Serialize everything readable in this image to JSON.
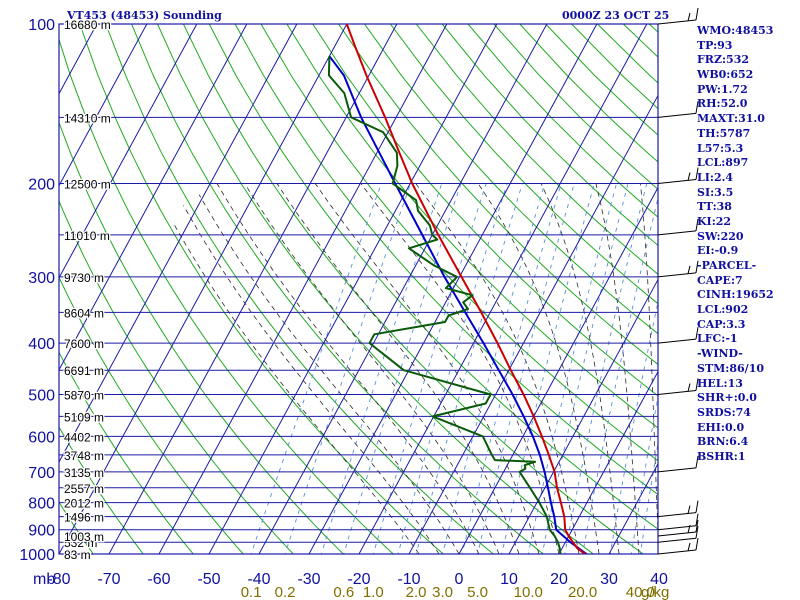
{
  "header": {
    "station_title": "VT453 (48453) Sounding",
    "time_label": "0000Z 23 OCT 25"
  },
  "indices": [
    "WMO:48453",
    "TP:93",
    "FRZ:532",
    "WB0:652",
    "PW:1.72",
    "RH:52.0",
    "MAXT:31.0",
    "TH:5787",
    "L57:5.3",
    "LCL:897",
    "LI:2.4",
    "SI:3.5",
    "TT:38",
    "KI:22",
    "SW:220",
    "EI:-0.9",
    "-PARCEL-",
    "CAPE:7",
    "CINH:19652",
    "LCL:902",
    "CAP:3.3",
    "LFC:-1",
    "-WIND-",
    "STM:86/10",
    "HEL:13",
    "SHR+:0.0",
    "SRDS:74",
    "EHI:0.0",
    "BRN:6.4",
    "BSHR:1"
  ],
  "colors": {
    "axis_text": "#1010a0",
    "isobars": "#1a1aa8",
    "isotherms": "#1a1aa8",
    "dry_adiabats": "#22aa22",
    "moist_adiabats": "#2a2a2a",
    "mixing_ratio": "#5a8fd6",
    "temperature": "#cc0000",
    "dewpoint": "#0a5a0a",
    "parcel": "#0000cc",
    "wind_barbs": "#000000",
    "mixing_labels": "#807000"
  },
  "chart_data": {
    "type": "line",
    "title": "",
    "xlabel": "",
    "ylabel": "mb",
    "y_scale": "log",
    "ylim": [
      1000,
      100
    ],
    "xlim": [
      -80,
      40
    ],
    "pressure_ticks": [
      1000,
      900,
      800,
      700,
      600,
      500,
      400,
      300,
      200,
      100
    ],
    "temperature_ticks": [
      -80,
      -70,
      -60,
      -50,
      -40,
      -30,
      -20,
      -10,
      0,
      10,
      20,
      30,
      40
    ],
    "height_labels": [
      {
        "p": 1000,
        "label": "83 m"
      },
      {
        "p": 950,
        "label": "532 m"
      },
      {
        "p": 925,
        "label": "1003 m"
      },
      {
        "p": 850,
        "label": "1496 m"
      },
      {
        "p": 800,
        "label": "2012 m"
      },
      {
        "p": 750,
        "label": "2557 m"
      },
      {
        "p": 700,
        "label": "3135 m"
      },
      {
        "p": 650,
        "label": "3748 m"
      },
      {
        "p": 600,
        "label": "4402 m"
      },
      {
        "p": 550,
        "label": "5109 m"
      },
      {
        "p": 500,
        "label": "5870 m"
      },
      {
        "p": 450,
        "label": "6691 m"
      },
      {
        "p": 400,
        "label": "7600 m"
      },
      {
        "p": 350,
        "label": "8604 m"
      },
      {
        "p": 300,
        "label": "9730 m"
      },
      {
        "p": 250,
        "label": "11010 m"
      },
      {
        "p": 200,
        "label": "12500 m"
      },
      {
        "p": 150,
        "label": "14310 m"
      },
      {
        "p": 100,
        "label": "16680 m"
      }
    ],
    "mixing_ratio_labels": [
      {
        "value": 0.1,
        "label": "0.1"
      },
      {
        "value": 0.2,
        "label": "0.2"
      },
      {
        "value": 0.6,
        "label": "0.6"
      },
      {
        "value": 1.0,
        "label": "1.0"
      },
      {
        "value": 2.0,
        "label": "2.0"
      },
      {
        "value": 3.0,
        "label": "3.0"
      },
      {
        "value": 5.0,
        "label": "5.0"
      },
      {
        "value": 10.0,
        "label": "10.0"
      },
      {
        "value": 20.0,
        "label": "20.0"
      },
      {
        "value": 40.0,
        "label": "40.0"
      }
    ],
    "mixing_ratio_unit": "g/kg",
    "series": [
      {
        "key": "temperature",
        "points": [
          [
            1000,
            25.2
          ],
          [
            975,
            23.0
          ],
          [
            950,
            21.5
          ],
          [
            925,
            20.0
          ],
          [
            900,
            18.6
          ],
          [
            850,
            17.0
          ],
          [
            800,
            14.8
          ],
          [
            750,
            12.4
          ],
          [
            700,
            10.2
          ],
          [
            650,
            7.2
          ],
          [
            600,
            3.8
          ],
          [
            550,
            0.0
          ],
          [
            500,
            -4.4
          ],
          [
            450,
            -9.6
          ],
          [
            400,
            -15.2
          ],
          [
            350,
            -21.8
          ],
          [
            300,
            -29.6
          ],
          [
            250,
            -38.8
          ],
          [
            200,
            -49.6
          ],
          [
            175,
            -55.5
          ],
          [
            150,
            -62.2
          ],
          [
            125,
            -70.5
          ],
          [
            110,
            -76.0
          ],
          [
            100,
            -80.0
          ]
        ]
      },
      {
        "key": "dewpoint",
        "points": [
          [
            1000,
            20.3
          ],
          [
            975,
            19.5
          ],
          [
            950,
            18.5
          ],
          [
            925,
            17.2
          ],
          [
            900,
            15.5
          ],
          [
            850,
            13.5
          ],
          [
            800,
            10.5
          ],
          [
            750,
            7.0
          ],
          [
            700,
            3.2
          ],
          [
            690,
            4.0
          ],
          [
            680,
            3.5
          ],
          [
            670,
            5.2
          ],
          [
            665,
            -3.0
          ],
          [
            650,
            -4.2
          ],
          [
            600,
            -8.0
          ],
          [
            550,
            -20.2
          ],
          [
            520,
            -11.0
          ],
          [
            500,
            -11.0
          ],
          [
            450,
            -31.0
          ],
          [
            400,
            -40.8
          ],
          [
            385,
            -40.8
          ],
          [
            365,
            -28.0
          ],
          [
            355,
            -28.0
          ],
          [
            345,
            -24.8
          ],
          [
            335,
            -26.5
          ],
          [
            325,
            -25.4
          ],
          [
            315,
            -31.5
          ],
          [
            300,
            -30.5
          ],
          [
            285,
            -36.5
          ],
          [
            265,
            -43.2
          ],
          [
            255,
            -38.5
          ],
          [
            250,
            -40.0
          ],
          [
            240,
            -41.5
          ],
          [
            225,
            -45.5
          ],
          [
            215,
            -47.0
          ],
          [
            200,
            -53.5
          ],
          [
            185,
            -54.5
          ],
          [
            175,
            -56.0
          ],
          [
            160,
            -61.0
          ],
          [
            150,
            -69.0
          ],
          [
            135,
            -73.0
          ],
          [
            125,
            -78.0
          ],
          [
            115,
            -80.0
          ]
        ]
      },
      {
        "key": "parcel",
        "points": [
          [
            1000,
            25.5
          ],
          [
            950,
            21.0
          ],
          [
            900,
            16.8
          ],
          [
            850,
            15.0
          ],
          [
            800,
            12.8
          ],
          [
            750,
            10.6
          ],
          [
            700,
            8.2
          ],
          [
            650,
            5.4
          ],
          [
            600,
            2.0
          ],
          [
            550,
            -2.0
          ],
          [
            500,
            -6.6
          ],
          [
            450,
            -12.0
          ],
          [
            400,
            -18.0
          ],
          [
            350,
            -25.0
          ],
          [
            300,
            -33.0
          ],
          [
            250,
            -42.0
          ],
          [
            200,
            -53.0
          ],
          [
            150,
            -67.0
          ],
          [
            125,
            -75.0
          ],
          [
            115,
            -80.0
          ]
        ]
      }
    ],
    "wind_barbs_mb": [
      1000,
      950,
      925,
      900,
      850,
      700,
      500,
      400,
      300,
      250,
      200,
      150,
      100
    ]
  }
}
